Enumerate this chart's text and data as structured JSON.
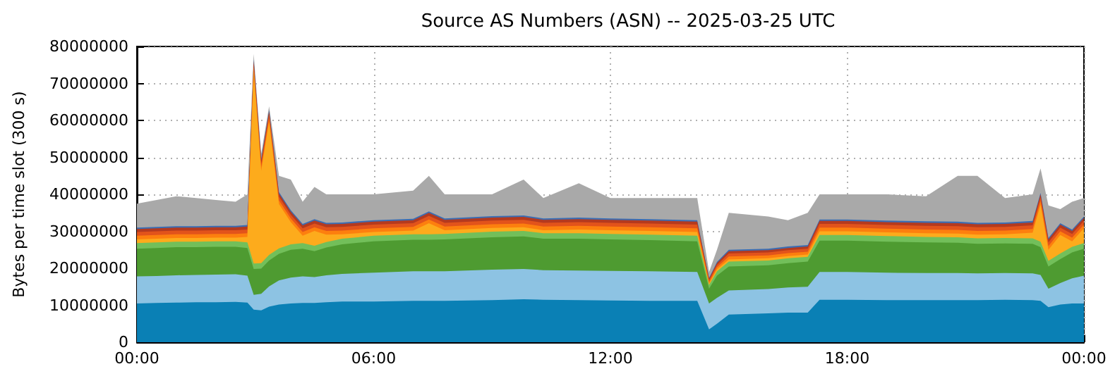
{
  "chart_data": {
    "type": "area",
    "title": "Source AS Numbers (ASN) -- 2025-03-25 UTC",
    "ylabel": "Bytes per time slot (300 s)",
    "stacked": true,
    "grid": true,
    "x": [
      0,
      0.5,
      1,
      1.5,
      2,
      2.5,
      2.8,
      2.96,
      3.15,
      3.35,
      3.6,
      3.9,
      4.2,
      4.5,
      4.8,
      5.2,
      6,
      7,
      7.4,
      7.8,
      9,
      9.8,
      10.3,
      11.2,
      12,
      13,
      14.2,
      14.5,
      14.7,
      15,
      16,
      16.5,
      17,
      17.3,
      18,
      19,
      20,
      20.8,
      21.3,
      22,
      22.7,
      22.9,
      23.1,
      23.4,
      23.7,
      24
    ],
    "xlim": [
      0,
      24
    ],
    "xticks": [
      {
        "value": 0,
        "label": "00:00"
      },
      {
        "value": 6,
        "label": "06:00"
      },
      {
        "value": 12,
        "label": "12:00"
      },
      {
        "value": 18,
        "label": "18:00"
      },
      {
        "value": 24,
        "label": "00:00"
      }
    ],
    "ylim": [
      0,
      80000000
    ],
    "yticks": [
      0,
      10000000,
      20000000,
      30000000,
      40000000,
      50000000,
      60000000,
      70000000,
      80000000
    ],
    "series": [
      {
        "color": "#0a80b5",
        "values": [
          10500000,
          10600000,
          10700000,
          10800000,
          10800000,
          10900000,
          10700000,
          8800000,
          8600000,
          9600000,
          10200000,
          10500000,
          10600000,
          10600000,
          10800000,
          11000000,
          11000000,
          11200000,
          11200000,
          11200000,
          11400000,
          11600000,
          11500000,
          11400000,
          11300000,
          11200000,
          11200000,
          3500000,
          5000000,
          7500000,
          7800000,
          8000000,
          8000000,
          11500000,
          11500000,
          11400000,
          11400000,
          11400000,
          11400000,
          11500000,
          11400000,
          11200000,
          9500000,
          10200000,
          10500000,
          10500000
        ]
      },
      {
        "color": "#8dc3e3",
        "values": [
          7300000,
          7300000,
          7400000,
          7400000,
          7500000,
          7500000,
          7300000,
          4000000,
          4500000,
          5500000,
          6500000,
          7000000,
          7200000,
          7000000,
          7300000,
          7500000,
          7800000,
          8000000,
          8000000,
          8000000,
          8200000,
          8200000,
          8000000,
          8000000,
          8000000,
          8000000,
          7800000,
          7000000,
          7000000,
          6500000,
          6600000,
          6800000,
          7000000,
          7500000,
          7500000,
          7400000,
          7300000,
          7300000,
          7200000,
          7200000,
          7200000,
          7000000,
          5000000,
          5800000,
          6800000,
          7500000
        ]
      },
      {
        "color": "#4e9b31",
        "values": [
          7500000,
          7600000,
          7600000,
          7500000,
          7500000,
          7400000,
          7500000,
          7000000,
          6800000,
          7000000,
          7200000,
          7500000,
          7500000,
          7000000,
          7500000,
          8000000,
          8500000,
          8500000,
          8500000,
          8600000,
          8800000,
          8800000,
          8500000,
          8600000,
          8500000,
          8400000,
          8300000,
          4000000,
          6000000,
          6500000,
          6400000,
          6600000,
          6800000,
          8500000,
          8500000,
          8400000,
          8300000,
          8200000,
          8000000,
          8000000,
          8000000,
          7500000,
          6000000,
          6500000,
          7000000,
          7300000
        ]
      },
      {
        "color": "#72bf5a",
        "values": [
          1500000,
          1500000,
          1500000,
          1500000,
          1500000,
          1500000,
          1500000,
          1500000,
          1500000,
          1500000,
          1500000,
          1500000,
          1500000,
          1500000,
          1500000,
          1500000,
          1500000,
          1500000,
          1500000,
          1500000,
          1500000,
          1500000,
          1500000,
          1500000,
          1500000,
          1500000,
          1500000,
          1000000,
          1200000,
          1300000,
          1300000,
          1300000,
          1300000,
          1500000,
          1500000,
          1500000,
          1500000,
          1500000,
          1500000,
          1500000,
          1500000,
          1500000,
          1500000,
          1500000,
          1500000,
          1500000
        ]
      },
      {
        "color": "#fdab1c",
        "values": [
          1000000,
          1000000,
          1000000,
          1000000,
          1000000,
          1000000,
          1500000,
          52000000,
          25000000,
          36000000,
          12000000,
          6000000,
          2000000,
          4000000,
          2000000,
          1200000,
          1000000,
          1000000,
          3000000,
          1000000,
          1000000,
          1000000,
          800000,
          1000000,
          1000000,
          1000000,
          1000000,
          400000,
          500000,
          600000,
          600000,
          600000,
          600000,
          1000000,
          1000000,
          1000000,
          1000000,
          1000000,
          1000000,
          1000000,
          1500000,
          10000000,
          3000000,
          5000000,
          1500000,
          4000000
        ]
      },
      {
        "color": "#fd7f0e",
        "values": [
          1000000,
          1000000,
          1000000,
          1000000,
          1000000,
          1000000,
          1000000,
          1000000,
          1000000,
          1000000,
          1000000,
          1000000,
          1000000,
          1000000,
          1000000,
          1000000,
          1000000,
          1000000,
          1000000,
          1000000,
          1000000,
          1000000,
          1000000,
          1000000,
          1000000,
          1000000,
          1000000,
          400000,
          600000,
          800000,
          800000,
          800000,
          800000,
          1000000,
          1000000,
          1000000,
          1000000,
          1000000,
          1000000,
          1000000,
          1000000,
          1000000,
          1000000,
          1000000,
          1000000,
          1000000
        ]
      },
      {
        "color": "#e2531b",
        "values": [
          1000000,
          1000000,
          1000000,
          1000000,
          1000000,
          1000000,
          1000000,
          1000000,
          1000000,
          1000000,
          1000000,
          1000000,
          1000000,
          1000000,
          1000000,
          1000000,
          1000000,
          1000000,
          1000000,
          1000000,
          1000000,
          1000000,
          1000000,
          1000000,
          1000000,
          1000000,
          1000000,
          500000,
          600000,
          800000,
          800000,
          800000,
          800000,
          1000000,
          1000000,
          1000000,
          1000000,
          1000000,
          1000000,
          1000000,
          1000000,
          1000000,
          1000000,
          1000000,
          1000000,
          1000000
        ]
      },
      {
        "color": "#b43a1f",
        "values": [
          800000,
          800000,
          800000,
          800000,
          800000,
          800000,
          800000,
          800000,
          800000,
          800000,
          800000,
          800000,
          800000,
          800000,
          800000,
          800000,
          800000,
          800000,
          800000,
          800000,
          800000,
          800000,
          800000,
          800000,
          800000,
          800000,
          800000,
          400000,
          500000,
          600000,
          600000,
          600000,
          600000,
          800000,
          800000,
          800000,
          800000,
          800000,
          800000,
          800000,
          800000,
          800000,
          800000,
          800000,
          800000,
          800000
        ]
      },
      {
        "color": "#3b6db3",
        "values": [
          400000,
          400000,
          400000,
          400000,
          400000,
          400000,
          400000,
          400000,
          400000,
          400000,
          400000,
          400000,
          400000,
          400000,
          400000,
          400000,
          400000,
          400000,
          400000,
          400000,
          400000,
          400000,
          400000,
          400000,
          400000,
          400000,
          400000,
          200000,
          300000,
          400000,
          400000,
          400000,
          400000,
          400000,
          400000,
          400000,
          400000,
          400000,
          400000,
          400000,
          400000,
          400000,
          400000,
          400000,
          400000,
          400000
        ]
      },
      {
        "color": "#a9a9a9",
        "values": [
          6500000,
          7300000,
          8100000,
          7600000,
          7000000,
          6500000,
          8300000,
          1500000,
          1400000,
          1000000,
          4400000,
          8300000,
          6000000,
          8700000,
          7700000,
          7600000,
          7000000,
          7600000,
          9600000,
          6500000,
          5900000,
          9700000,
          5500000,
          9300000,
          5500000,
          5700000,
          6000000,
          1600000,
          3300000,
          10000000,
          8700000,
          7100000,
          8700000,
          6800000,
          6800000,
          7100000,
          6800000,
          12400000,
          12700000,
          6600000,
          7200000,
          6600000,
          8800000,
          3800000,
          7500000,
          5000000
        ]
      }
    ]
  }
}
